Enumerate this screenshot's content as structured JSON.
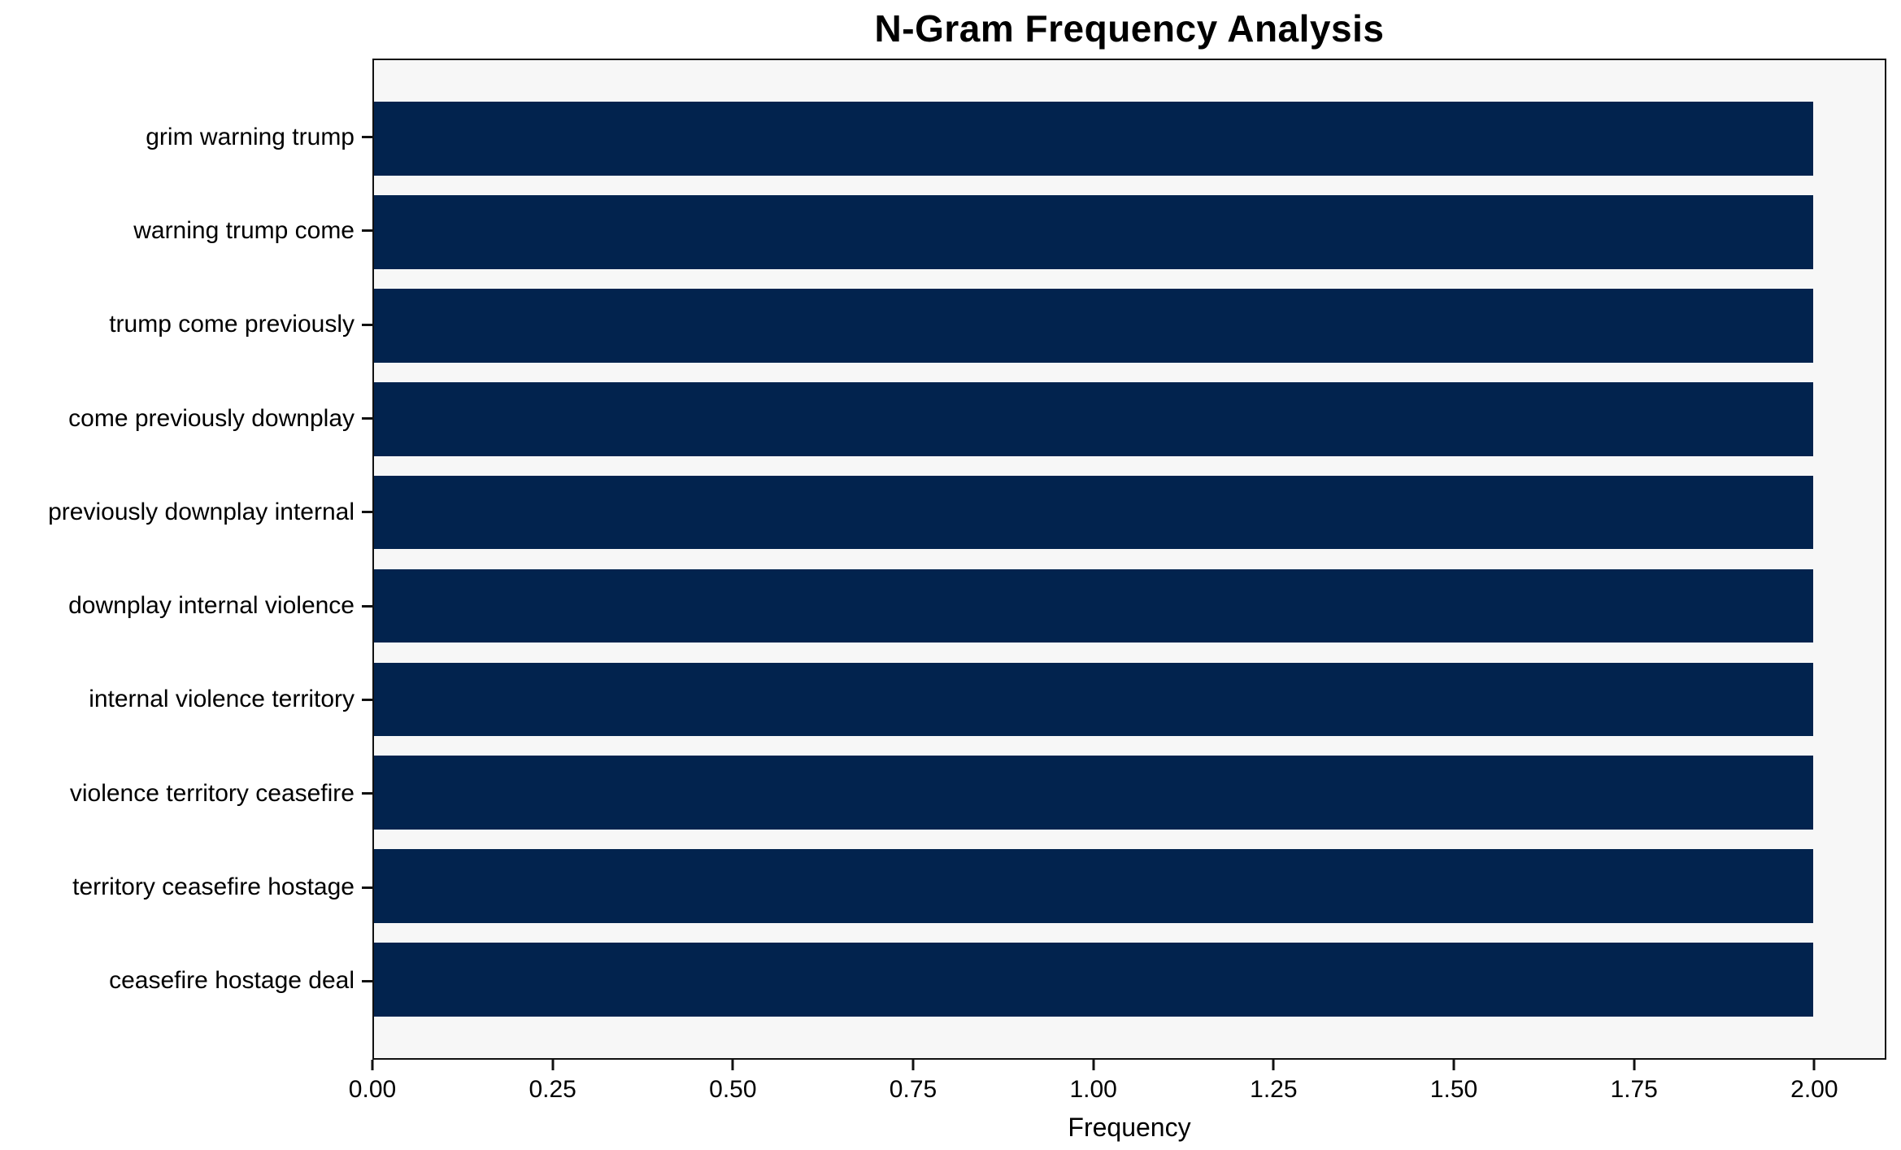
{
  "chart_data": {
    "type": "bar",
    "orientation": "horizontal",
    "title": "N-Gram Frequency Analysis",
    "xlabel": "Frequency",
    "ylabel": "",
    "categories": [
      "grim warning trump",
      "warning trump come",
      "trump come previously",
      "come previously downplay",
      "previously downplay internal",
      "downplay internal violence",
      "internal violence territory",
      "violence territory ceasefire",
      "territory ceasefire hostage",
      "ceasefire hostage deal"
    ],
    "values": [
      2,
      2,
      2,
      2,
      2,
      2,
      2,
      2,
      2,
      2
    ],
    "xlim": [
      0,
      2.1
    ],
    "xtick_values": [
      0,
      0.25,
      0.5,
      0.75,
      1.0,
      1.25,
      1.5,
      1.75,
      2.0
    ],
    "xtick_labels": [
      "0.00",
      "0.25",
      "0.50",
      "0.75",
      "1.00",
      "1.25",
      "1.50",
      "1.75",
      "2.00"
    ],
    "grid": false,
    "legend": null,
    "colors": {
      "bar": "#02234e",
      "plot_background": "#f7f7f7",
      "figure_background": "#ffffff",
      "spine": "#111111",
      "text": "#000000"
    }
  }
}
